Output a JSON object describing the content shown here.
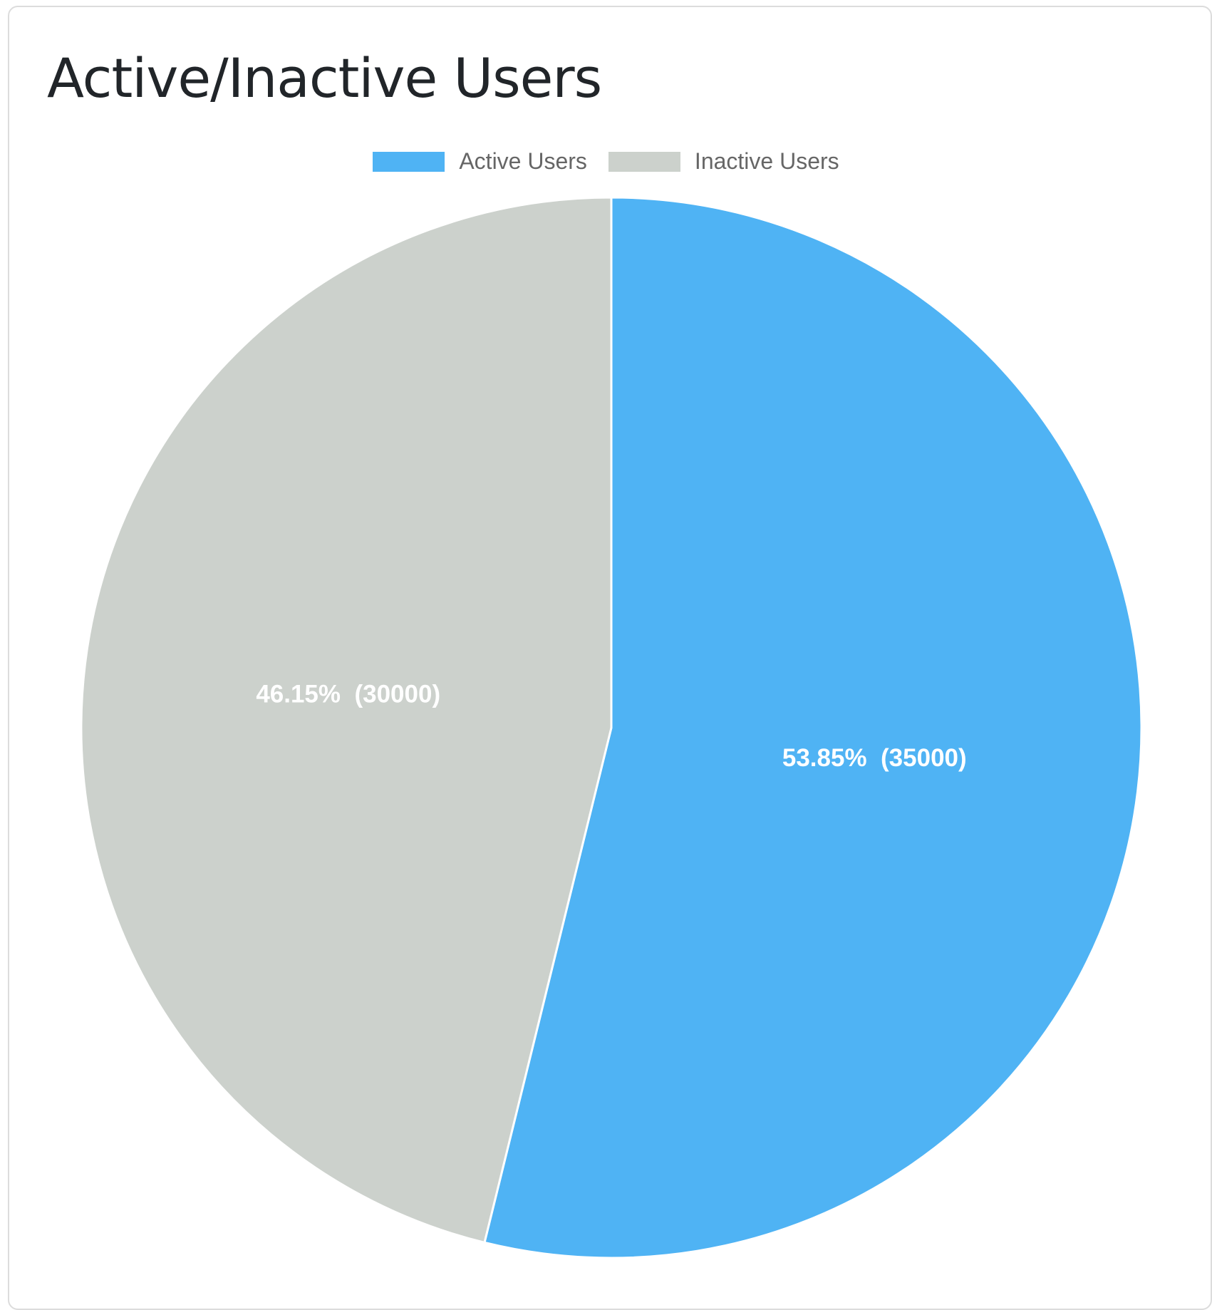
{
  "card": {
    "title": "Active/Inactive Users"
  },
  "chart_data": {
    "type": "pie",
    "title": "Active/Inactive Users",
    "categories": [
      "Active Users",
      "Inactive Users"
    ],
    "values": [
      35000,
      30000
    ],
    "percent_labels": [
      "53.85%  (35000)",
      "46.15%  (30000)"
    ],
    "colors": [
      "#4fb3f4",
      "#ccd1cc"
    ],
    "legend": {
      "placement": "top",
      "entries": [
        "Active Users",
        "Inactive Users"
      ]
    },
    "start_angle": "top, clockwise"
  }
}
